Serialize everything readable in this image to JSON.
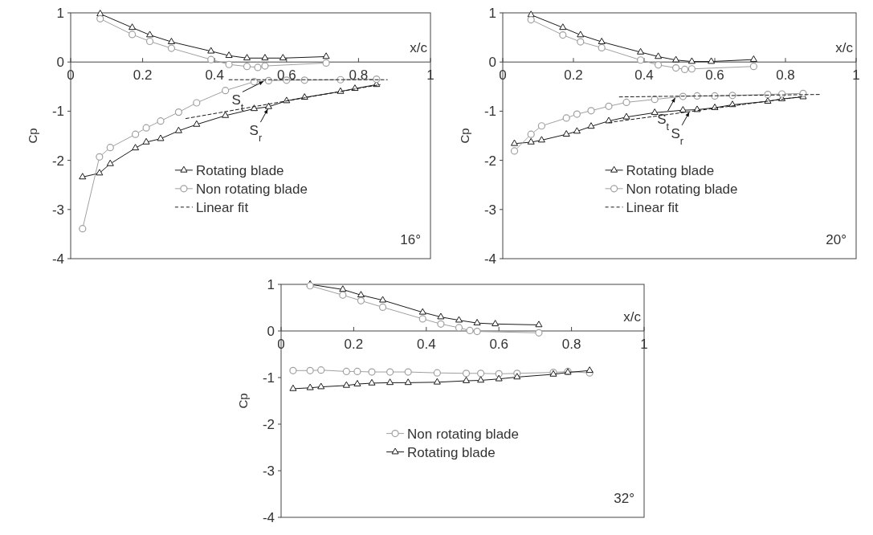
{
  "chart_data": [
    {
      "type": "line",
      "xlabel": "x/c",
      "ylabel": "Cp",
      "xlim": [
        0,
        1
      ],
      "ylim": [
        -4,
        1
      ],
      "xticks": [
        0,
        0.2,
        0.4,
        0.6,
        0.8,
        1
      ],
      "yticks": [
        -4,
        -3,
        -2,
        -1,
        0,
        1
      ],
      "legend": "bottom",
      "annotations": [
        "16°",
        {
          "text": "S$_{t}$",
          "x": 0.54,
          "y": -0.38
        },
        {
          "text": "S$_{r}$",
          "x": 0.55,
          "y": -0.93
        }
      ],
      "series": [
        {
          "name": "Rotating blade",
          "color": "#1a1a1a",
          "marker": "triangle",
          "x": [
            0.033,
            0.08,
            0.11,
            0.18,
            0.21,
            0.25,
            0.3,
            0.35,
            0.43,
            0.51,
            0.55,
            0.6,
            0.65,
            0.75,
            0.79,
            0.85
          ],
          "values": [
            -2.34,
            -2.26,
            -2.07,
            -1.75,
            -1.63,
            -1.56,
            -1.4,
            -1.27,
            -1.09,
            -0.95,
            -0.91,
            -0.79,
            -0.72,
            -0.6,
            -0.54,
            -0.46
          ]
        },
        {
          "name": "Non rotating blade",
          "color": "#a0a0a0",
          "marker": "circle",
          "x": [
            0.033,
            0.08,
            0.11,
            0.18,
            0.21,
            0.25,
            0.3,
            0.35,
            0.43,
            0.51,
            0.55,
            0.6,
            0.65,
            0.75,
            0.85
          ],
          "values": [
            -3.39,
            -1.93,
            -1.74,
            -1.47,
            -1.34,
            -1.2,
            -1.02,
            -0.83,
            -0.58,
            -0.4,
            -0.38,
            -0.37,
            -0.37,
            -0.36,
            -0.35
          ]
        },
        {
          "name": "Linear fit",
          "color": "#1a1a1a",
          "marker": "none",
          "line_style": "dashed",
          "x": [
            0.44,
            0.88
          ],
          "values": [
            -0.36,
            -0.36
          ]
        },
        {
          "color": "#1a1a1a",
          "marker": "none",
          "line_style": "dashed",
          "x": [
            0.32,
            0.86
          ],
          "values": [
            -1.15,
            -0.46
          ]
        },
        {
          "color": "#1a1a1a",
          "marker": "triangle",
          "x": [
            0.082,
            0.171,
            0.22,
            0.28,
            0.39,
            0.44,
            0.49,
            0.54,
            0.59,
            0.71
          ],
          "values": [
            0.98,
            0.7,
            0.55,
            0.41,
            0.22,
            0.13,
            0.08,
            0.08,
            0.08,
            0.11
          ]
        },
        {
          "color": "#a0a0a0",
          "marker": "circle",
          "x": [
            0.082,
            0.171,
            0.22,
            0.28,
            0.39,
            0.44,
            0.49,
            0.52,
            0.54,
            0.71
          ],
          "values": [
            0.88,
            0.56,
            0.42,
            0.28,
            0.05,
            -0.05,
            -0.09,
            -0.11,
            -0.08,
            -0.02
          ]
        }
      ]
    },
    {
      "type": "line",
      "xlabel": "x/c",
      "ylabel": "Cp",
      "xlim": [
        0,
        1
      ],
      "ylim": [
        -4,
        1
      ],
      "xticks": [
        0,
        0.2,
        0.4,
        0.6,
        0.8,
        1
      ],
      "yticks": [
        -4,
        -3,
        -2,
        -1,
        0,
        1
      ],
      "legend": "bottom",
      "annotations": [
        "20°",
        {
          "text": "S$_{t}$",
          "x": 0.49,
          "y": -0.7
        },
        {
          "text": "S$_{r}$",
          "x": 0.53,
          "y": -0.99
        }
      ],
      "series": [
        {
          "name": "Rotating blade",
          "color": "#1a1a1a",
          "marker": "triangle",
          "x": [
            0.033,
            0.08,
            0.11,
            0.18,
            0.21,
            0.25,
            0.3,
            0.35,
            0.43,
            0.51,
            0.55,
            0.6,
            0.65,
            0.75,
            0.79,
            0.85
          ],
          "values": [
            -1.66,
            -1.63,
            -1.59,
            -1.47,
            -1.41,
            -1.31,
            -1.2,
            -1.12,
            -1.03,
            -0.98,
            -0.97,
            -0.93,
            -0.87,
            -0.8,
            -0.75,
            -0.71
          ]
        },
        {
          "name": "Non rotating blade",
          "color": "#a0a0a0",
          "marker": "circle",
          "x": [
            0.033,
            0.08,
            0.11,
            0.18,
            0.21,
            0.25,
            0.3,
            0.35,
            0.43,
            0.51,
            0.55,
            0.6,
            0.65,
            0.75,
            0.79,
            0.85
          ],
          "values": [
            -1.81,
            -1.47,
            -1.3,
            -1.14,
            -1.06,
            -0.99,
            -0.9,
            -0.82,
            -0.76,
            -0.7,
            -0.69,
            -0.69,
            -0.68,
            -0.66,
            -0.65,
            -0.64
          ]
        },
        {
          "name": "Linear fit",
          "color": "#1a1a1a",
          "marker": "none",
          "line_style": "dashed",
          "x": [
            0.33,
            0.9
          ],
          "values": [
            -0.71,
            -0.66
          ]
        },
        {
          "color": "#1a1a1a",
          "marker": "none",
          "line_style": "dashed",
          "x": [
            0.3,
            0.85
          ],
          "values": [
            -1.23,
            -0.7
          ]
        },
        {
          "color": "#1a1a1a",
          "marker": "triangle",
          "x": [
            0.08,
            0.17,
            0.22,
            0.28,
            0.39,
            0.44,
            0.49,
            0.535,
            0.59,
            0.71
          ],
          "values": [
            0.96,
            0.7,
            0.55,
            0.41,
            0.2,
            0.11,
            0.04,
            0.01,
            0.01,
            0.05
          ]
        },
        {
          "color": "#a0a0a0",
          "marker": "circle",
          "x": [
            0.08,
            0.17,
            0.22,
            0.28,
            0.39,
            0.44,
            0.49,
            0.515,
            0.535,
            0.71
          ],
          "values": [
            0.86,
            0.55,
            0.41,
            0.29,
            0.04,
            -0.06,
            -0.12,
            -0.15,
            -0.14,
            -0.09
          ]
        }
      ]
    },
    {
      "type": "line",
      "xlabel": "x/c",
      "ylabel": "Cp",
      "xlim": [
        0,
        1
      ],
      "ylim": [
        -4,
        1
      ],
      "xticks": [
        0,
        0.2,
        0.4,
        0.6,
        0.8,
        1
      ],
      "yticks": [
        -4,
        -3,
        -2,
        -1,
        0,
        1
      ],
      "legend": "bottom",
      "annotations": [
        "32°"
      ],
      "series": [
        {
          "name": "Non rotating blade",
          "color": "#a0a0a0",
          "marker": "circle",
          "x": [
            0.033,
            0.08,
            0.11,
            0.18,
            0.21,
            0.25,
            0.3,
            0.35,
            0.43,
            0.51,
            0.55,
            0.6,
            0.65,
            0.75,
            0.79,
            0.85
          ],
          "values": [
            -0.85,
            -0.85,
            -0.84,
            -0.87,
            -0.87,
            -0.88,
            -0.88,
            -0.88,
            -0.9,
            -0.91,
            -0.91,
            -0.92,
            -0.91,
            -0.89,
            -0.87,
            -0.9
          ]
        },
        {
          "name": "Rotating blade",
          "color": "#1a1a1a",
          "marker": "triangle",
          "x": [
            0.033,
            0.08,
            0.11,
            0.18,
            0.21,
            0.25,
            0.3,
            0.35,
            0.43,
            0.51,
            0.55,
            0.6,
            0.65,
            0.75,
            0.79,
            0.85
          ],
          "values": [
            -1.24,
            -1.22,
            -1.2,
            -1.17,
            -1.14,
            -1.12,
            -1.11,
            -1.11,
            -1.1,
            -1.07,
            -1.06,
            -1.03,
            -0.99,
            -0.93,
            -0.89,
            -0.85
          ]
        },
        {
          "color": "#1a1a1a",
          "marker": "triangle",
          "x": [
            0.08,
            0.17,
            0.22,
            0.28,
            0.39,
            0.44,
            0.49,
            0.54,
            0.59,
            0.71
          ],
          "values": [
            1,
            0.89,
            0.77,
            0.66,
            0.4,
            0.3,
            0.23,
            0.17,
            0.15,
            0.13
          ]
        },
        {
          "color": "#a0a0a0",
          "marker": "circle",
          "x": [
            0.08,
            0.17,
            0.22,
            0.28,
            0.39,
            0.44,
            0.49,
            0.52,
            0.54,
            0.71
          ],
          "values": [
            0.97,
            0.77,
            0.65,
            0.51,
            0.26,
            0.15,
            0.07,
            0.01,
            -0.01,
            -0.04
          ]
        }
      ]
    }
  ]
}
